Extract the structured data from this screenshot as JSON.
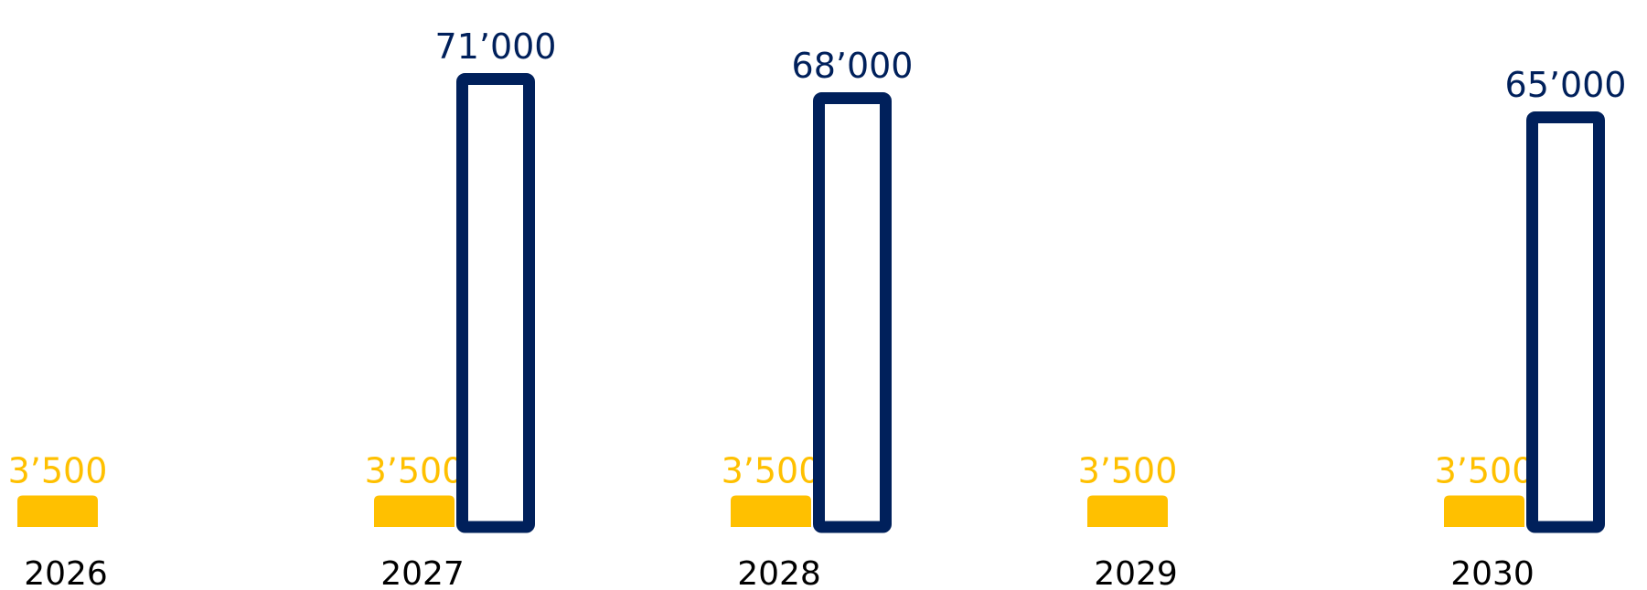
{
  "chart_data": {
    "type": "bar",
    "categories": [
      "2026",
      "2027",
      "2028",
      "2029",
      "2030"
    ],
    "series": [
      {
        "key": "yellow",
        "values": [
          3500,
          3500,
          3500,
          3500,
          3500
        ],
        "labels": [
          "3’500",
          "3’500",
          "3’500",
          "3’500",
          "3’500"
        ],
        "color": "#FFC000",
        "style": "filled"
      },
      {
        "key": "navy",
        "values": [
          null,
          71000,
          68000,
          null,
          65000
        ],
        "labels": [
          "",
          "71’000",
          "68’000",
          "",
          "65’000"
        ],
        "color": "#00205B",
        "style": "outlined"
      }
    ],
    "title": "",
    "xlabel": "",
    "ylabel": "",
    "grid": false,
    "legend": "none",
    "year_label_color": "#000000"
  }
}
